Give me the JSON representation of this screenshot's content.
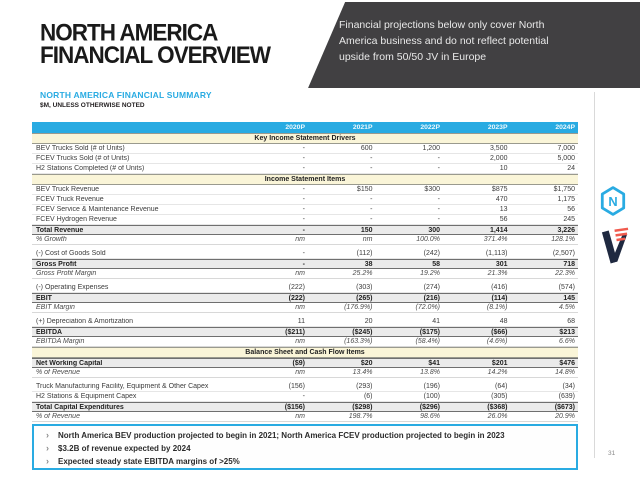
{
  "slide": {
    "title_line1": "NORTH AMERICA",
    "title_line2": "FINANCIAL OVERVIEW",
    "subtitle": "NORTH AMERICA FINANCIAL SUMMARY",
    "units_note": "$M, UNLESS OTHERWISE NOTED",
    "banner_text": "Financial projections below only cover North America business and do not reflect potential upside from 50/50 JV in Europe",
    "page_number": "31",
    "takeaway_marker": "›"
  },
  "colors": {
    "accent_cyan": "#29ABE2",
    "banner_bg": "#414042",
    "section_band": "#FAF5D8",
    "total_row_bg": "#EBEBEB",
    "vectoiq_navy": "#1F2940",
    "vectoiq_coral": "#F15B4E"
  },
  "icons": {
    "nikola_logo": "nikola-hexagon-n-icon",
    "vectoiq_logo": "vectoiq-v-icon"
  },
  "table": {
    "columns": [
      "2020P",
      "2021P",
      "2022P",
      "2023P",
      "2024P"
    ],
    "rows": [
      {
        "type": "section",
        "label": "Key Income Statement Drivers"
      },
      {
        "type": "data",
        "label": "BEV Trucks Sold (# of Units)",
        "values": [
          "-",
          "600",
          "1,200",
          "3,500",
          "7,000"
        ]
      },
      {
        "type": "data",
        "label": "FCEV Trucks Sold (# of Units)",
        "values": [
          "-",
          "-",
          "-",
          "2,000",
          "5,000"
        ]
      },
      {
        "type": "data",
        "label": "H2 Stations Completed (# of Units)",
        "values": [
          "-",
          "-",
          "-",
          "10",
          "24"
        ]
      },
      {
        "type": "section",
        "label": "Income Statement Items"
      },
      {
        "type": "data",
        "label": "BEV Truck Revenue",
        "values": [
          "-",
          "$150",
          "$300",
          "$875",
          "$1,750"
        ]
      },
      {
        "type": "data",
        "label": "FCEV Truck Revenue",
        "values": [
          "-",
          "-",
          "-",
          "470",
          "1,175"
        ]
      },
      {
        "type": "data",
        "label": "FCEV Service & Maintenance Revenue",
        "values": [
          "-",
          "-",
          "-",
          "13",
          "56"
        ]
      },
      {
        "type": "data",
        "label": "FCEV Hydrogen Revenue",
        "values": [
          "-",
          "-",
          "-",
          "56",
          "245"
        ]
      },
      {
        "type": "total",
        "label": "Total Revenue",
        "values": [
          "-",
          "150",
          "300",
          "1,414",
          "3,226"
        ]
      },
      {
        "type": "pct",
        "label": "% Growth",
        "values": [
          "nm",
          "nm",
          "100.0%",
          "371.4%",
          "128.1%"
        ]
      },
      {
        "type": "spacer"
      },
      {
        "type": "data",
        "label": "(-) Cost of Goods Sold",
        "values": [
          "-",
          "(112)",
          "(242)",
          "(1,113)",
          "(2,507)"
        ]
      },
      {
        "type": "total",
        "label": "Gross Profit",
        "values": [
          "-",
          "38",
          "58",
          "301",
          "718"
        ]
      },
      {
        "type": "pct",
        "label": "Gross Profit Margin",
        "values": [
          "nm",
          "25.2%",
          "19.2%",
          "21.3%",
          "22.3%"
        ]
      },
      {
        "type": "spacer"
      },
      {
        "type": "data",
        "label": "(-) Operating Expenses",
        "values": [
          "(222)",
          "(303)",
          "(274)",
          "(416)",
          "(574)"
        ]
      },
      {
        "type": "total",
        "label": "EBIT",
        "values": [
          "(222)",
          "(265)",
          "(216)",
          "(114)",
          "145"
        ]
      },
      {
        "type": "pct",
        "label": "EBIT Margin",
        "values": [
          "nm",
          "(176.9%)",
          "(72.0%)",
          "(8.1%)",
          "4.5%"
        ]
      },
      {
        "type": "spacer"
      },
      {
        "type": "data",
        "label": "(+) Depreciation & Amortization",
        "values": [
          "11",
          "20",
          "41",
          "48",
          "68"
        ]
      },
      {
        "type": "total",
        "label": "EBITDA",
        "values": [
          "($211)",
          "($245)",
          "($175)",
          "($66)",
          "$213"
        ]
      },
      {
        "type": "pct",
        "label": "EBITDA Margin",
        "values": [
          "nm",
          "(163.3%)",
          "(58.4%)",
          "(4.6%)",
          "6.6%"
        ]
      },
      {
        "type": "section",
        "label": "Balance Sheet and Cash Flow Items"
      },
      {
        "type": "total",
        "label": "Net Working Capital",
        "values": [
          "($9)",
          "$20",
          "$41",
          "$201",
          "$476"
        ]
      },
      {
        "type": "pct",
        "label": "% of Revenue",
        "values": [
          "nm",
          "13.4%",
          "13.8%",
          "14.2%",
          "14.8%"
        ]
      },
      {
        "type": "spacer"
      },
      {
        "type": "data",
        "label": "Truck Manufacturing Facility, Equipment & Other Capex",
        "values": [
          "(156)",
          "(293)",
          "(196)",
          "(64)",
          "(34)"
        ]
      },
      {
        "type": "data",
        "label": "H2 Stations & Equipment Capex",
        "values": [
          "-",
          "(6)",
          "(100)",
          "(305)",
          "(639)"
        ]
      },
      {
        "type": "total",
        "label": "Total Capital Expenditures",
        "values": [
          "($156)",
          "($298)",
          "($296)",
          "($368)",
          "($673)"
        ]
      },
      {
        "type": "pct",
        "label": "% of Revenue",
        "values": [
          "nm",
          "198.7%",
          "98.6%",
          "26.0%",
          "20.9%"
        ]
      }
    ]
  },
  "takeaways": [
    "North America BEV production projected to begin in 2021; North America FCEV production projected to begin in 2023",
    "$3.2B of revenue expected by 2024",
    "Expected steady state EBITDA margins of >25%"
  ]
}
